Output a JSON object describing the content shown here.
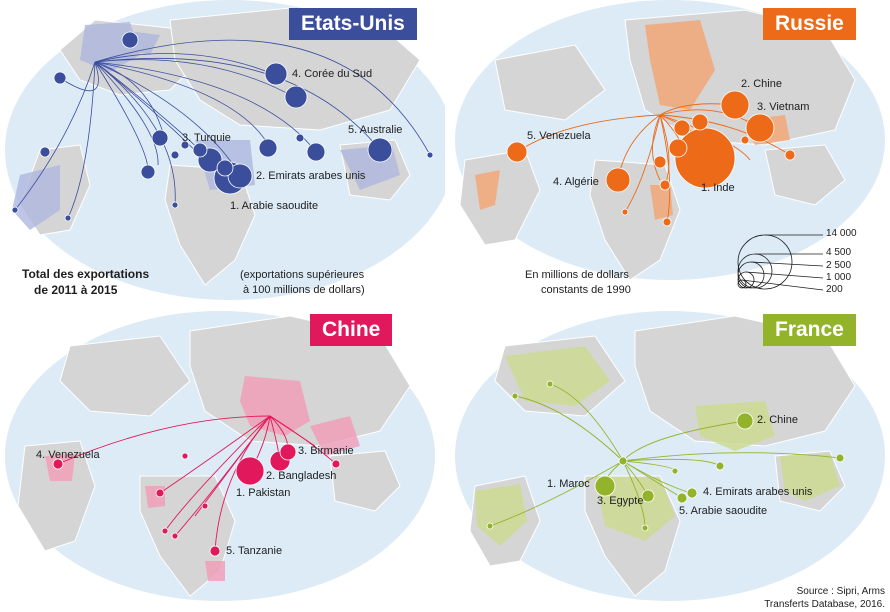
{
  "colors": {
    "ocean": "#dcebf6",
    "land": "#d5d5d5",
    "usa": "#3a4e9c",
    "russia": "#ec6a18",
    "china": "#e1195c",
    "france": "#93b42a"
  },
  "panels": {
    "usa": {
      "title": "Etats-Unis",
      "labels": [
        "4. Corée du Sud",
        "3. Turquie",
        "5. Australie",
        "2. Emirats arabes unis",
        "1. Arabie saoudite"
      ]
    },
    "russia": {
      "title": "Russie",
      "labels": [
        "2. Chine",
        "3. Vietnam",
        "5. Venezuela",
        "4. Algérie",
        "1. Inde"
      ]
    },
    "china": {
      "title": "Chine",
      "labels": [
        "4. Venezuela",
        "3. Birmanie",
        "2. Bangladesh",
        "1. Pakistan",
        "5. Tanzanie"
      ]
    },
    "france": {
      "title": "France",
      "labels": [
        "2. Chine",
        "1. Maroc",
        "3. Egypte",
        "4. Emirats arabes unis",
        "5. Arabie saoudite"
      ]
    }
  },
  "notes": {
    "total_line1": "Total des exportations",
    "total_line2": "de 2011 à 2015",
    "threshold_line1": "(exportations supérieures",
    "threshold_line2": "à 100 millions de dollars)",
    "units_line1": "En millions de dollars",
    "units_line2": "constants de 1990"
  },
  "legend": {
    "values": [
      "14 000",
      "4 500",
      "2 500",
      "1 000",
      "200"
    ]
  },
  "source": {
    "line1": "Source : Sipri, Arms",
    "line2": "Transferts Database, 2016."
  }
}
